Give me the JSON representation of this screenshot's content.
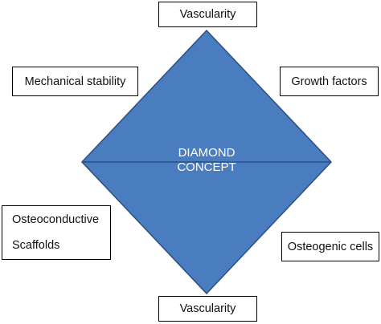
{
  "diagram": {
    "center_title_line1": "DIAMOND",
    "center_title_line2": "CONCEPT",
    "colors": {
      "diamond_fill": "#4a7cc0",
      "diamond_edge": "#2c4f80",
      "box_border": "#000000",
      "center_text": "#ffffff"
    },
    "labels": {
      "top": "Vascularity",
      "top_left": "Mechanical stability",
      "top_right": "Growth factors",
      "bottom_left_line1": "Osteoconductive",
      "bottom_left_line2": "Scaffolds",
      "bottom_right": "Osteogenic cells",
      "bottom": "Vascularity"
    }
  }
}
